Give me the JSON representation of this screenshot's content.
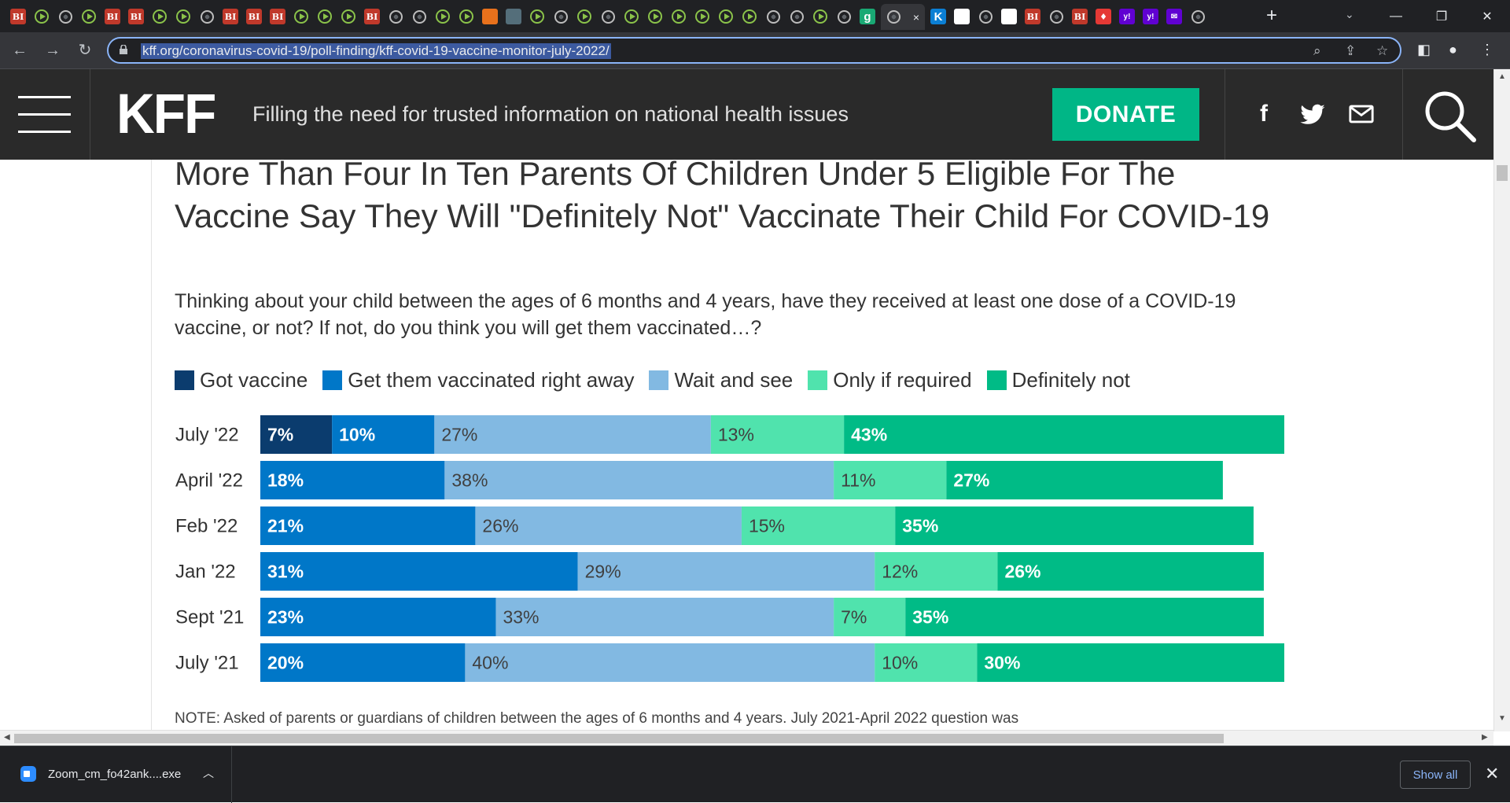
{
  "browser": {
    "tabs": [
      {
        "icon": "bi-icon",
        "text": "BI"
      },
      {
        "icon": "play-icon",
        "text": ""
      },
      {
        "icon": "globe-icon",
        "text": ""
      },
      {
        "icon": "play-icon",
        "text": ""
      },
      {
        "icon": "bi-icon",
        "text": "BI"
      },
      {
        "icon": "bi-icon",
        "text": "BI"
      },
      {
        "icon": "play-icon",
        "text": ""
      },
      {
        "icon": "play-icon",
        "text": ""
      },
      {
        "icon": "globe-icon",
        "text": ""
      },
      {
        "icon": "bi-icon",
        "text": "BI"
      },
      {
        "icon": "bi-icon",
        "text": "BI"
      },
      {
        "icon": "bi-icon",
        "text": "BI"
      },
      {
        "icon": "play-icon",
        "text": ""
      },
      {
        "icon": "play-icon",
        "text": ""
      },
      {
        "icon": "play-icon",
        "text": ""
      },
      {
        "icon": "bi-icon",
        "text": "BI"
      },
      {
        "icon": "globe-icon",
        "text": ""
      },
      {
        "icon": "globe-icon",
        "text": ""
      },
      {
        "icon": "play-icon",
        "text": ""
      },
      {
        "icon": "play-icon",
        "text": ""
      },
      {
        "icon": "bookmark-icon",
        "text": ""
      },
      {
        "icon": "ticket-icon",
        "text": ""
      },
      {
        "icon": "play-icon",
        "text": ""
      },
      {
        "icon": "globe-icon",
        "text": ""
      },
      {
        "icon": "play-icon",
        "text": ""
      },
      {
        "icon": "globe-icon",
        "text": ""
      },
      {
        "icon": "play-icon",
        "text": ""
      },
      {
        "icon": "play-icon",
        "text": ""
      },
      {
        "icon": "play-icon",
        "text": ""
      },
      {
        "icon": "play-icon",
        "text": ""
      },
      {
        "icon": "play-icon",
        "text": ""
      },
      {
        "icon": "play-icon",
        "text": ""
      },
      {
        "icon": "globe-icon",
        "text": ""
      },
      {
        "icon": "globe-icon",
        "text": ""
      },
      {
        "icon": "play-icon",
        "text": ""
      },
      {
        "icon": "globe-icon",
        "text": ""
      },
      {
        "icon": "g-icon",
        "text": "g"
      }
    ],
    "tabs_after": [
      {
        "icon": "k-icon",
        "text": "K"
      },
      {
        "icon": "grid-icon",
        "text": ""
      },
      {
        "icon": "globe-icon",
        "text": ""
      },
      {
        "icon": "grid-icon",
        "text": ""
      },
      {
        "icon": "bi-icon",
        "text": "BI"
      },
      {
        "icon": "globe-icon",
        "text": ""
      },
      {
        "icon": "bi-icon",
        "text": "BI"
      },
      {
        "icon": "red-icon",
        "text": "♦"
      },
      {
        "icon": "yahoo-icon",
        "text": "y!"
      },
      {
        "icon": "yahoo-icon",
        "text": "y!"
      },
      {
        "icon": "yahoo-mail-icon",
        "text": "✉"
      },
      {
        "icon": "globe-icon",
        "text": ""
      }
    ],
    "active_tab_close": "×",
    "new_tab": "+",
    "url": "kff.org/coronavirus-covid-19/poll-finding/kff-covid-19-vaccine-monitor-july-2022/"
  },
  "header": {
    "logo": "KFF",
    "tagline": "Filling the need for trusted information on national health issues",
    "donate_label": "DONATE",
    "facebook": "f"
  },
  "article": {
    "headline": "More Than Four In Ten Parents Of Children Under 5 Eligible For The Vaccine Say They Will \"Definitely Not\" Vaccinate Their Child For COVID-19",
    "question": "Thinking about your child between the ages of 6 months and 4 years, have they received at least one dose of a COVID-19 vaccine, or not? If not, do you think you will get them vaccinated…?",
    "note": "NOTE: Asked of parents or guardians of children between the ages of 6 months and 4 years. July 2021-April 2022 question was"
  },
  "chart_data": {
    "type": "bar",
    "orientation": "horizontal",
    "stacked": true,
    "title": "More Than Four In Ten Parents Of Children Under 5 Eligible For The Vaccine Say They Will \"Definitely Not\" Vaccinate Their Child For COVID-19",
    "categories": [
      "July '22",
      "April '22",
      "Feb '22",
      "Jan '22",
      "Sept '21",
      "July '21"
    ],
    "series": [
      {
        "name": "Got vaccine",
        "color": "#0b3c6e",
        "values": [
          7,
          null,
          null,
          null,
          null,
          null
        ],
        "label_color": "#ffffff"
      },
      {
        "name": "Get them vaccinated right away",
        "color": "#0077c8",
        "values": [
          10,
          18,
          21,
          31,
          23,
          20
        ],
        "label_color": "#ffffff"
      },
      {
        "name": "Wait and see",
        "color": "#82b9e2",
        "values": [
          27,
          38,
          26,
          29,
          33,
          40
        ],
        "label_color": "#404040"
      },
      {
        "name": "Only if required",
        "color": "#50e3ad",
        "values": [
          13,
          11,
          15,
          12,
          7,
          10
        ],
        "label_color": "#404040"
      },
      {
        "name": "Definitely not",
        "color": "#00bb86",
        "values": [
          43,
          27,
          35,
          26,
          35,
          30
        ],
        "label_color": "#ffffff"
      }
    ],
    "xlim": [
      0,
      100
    ],
    "legend_position": "top",
    "grid": false
  },
  "downloads": {
    "file_name": "Zoom_cm_fo42ank....exe",
    "show_all": "Show all",
    "close": "✕"
  }
}
